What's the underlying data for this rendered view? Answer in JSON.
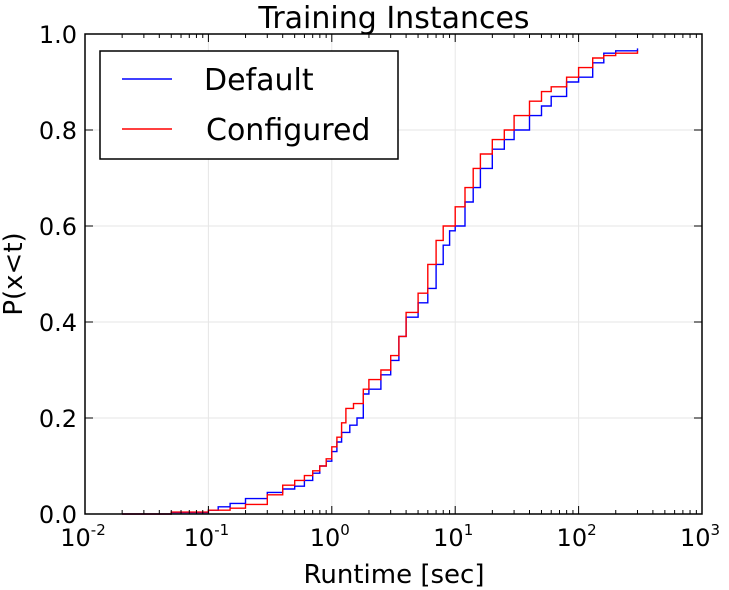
{
  "chart_data": {
    "type": "line",
    "title": "Training Instances",
    "xlabel": "Runtime [sec]",
    "ylabel": "P(x<t)",
    "xscale": "log",
    "xlim": [
      0.01,
      1000
    ],
    "ylim": [
      0.0,
      1.0
    ],
    "grid": true,
    "legend_position": "top-left",
    "x_tick_labels": [
      {
        "base": "10",
        "exp": "-2",
        "value": 0.01
      },
      {
        "base": "10",
        "exp": "-1",
        "value": 0.1
      },
      {
        "base": "10",
        "exp": "0",
        "value": 1
      },
      {
        "base": "10",
        "exp": "1",
        "value": 10
      },
      {
        "base": "10",
        "exp": "2",
        "value": 100
      },
      {
        "base": "10",
        "exp": "3",
        "value": 1000
      }
    ],
    "y_tick_labels": [
      "0.0",
      "0.2",
      "0.4",
      "0.6",
      "0.8",
      "1.0"
    ],
    "y_tick_values": [
      0.0,
      0.2,
      0.4,
      0.6,
      0.8,
      1.0
    ],
    "series": [
      {
        "name": "Default",
        "color": "#0000ff",
        "points": [
          [
            0.02,
            0.0
          ],
          [
            0.05,
            0.003
          ],
          [
            0.1,
            0.008
          ],
          [
            0.12,
            0.015
          ],
          [
            0.15,
            0.022
          ],
          [
            0.2,
            0.032
          ],
          [
            0.3,
            0.045
          ],
          [
            0.4,
            0.052
          ],
          [
            0.5,
            0.058
          ],
          [
            0.6,
            0.07
          ],
          [
            0.7,
            0.085
          ],
          [
            0.8,
            0.1
          ],
          [
            0.9,
            0.11
          ],
          [
            1.0,
            0.13
          ],
          [
            1.1,
            0.15
          ],
          [
            1.2,
            0.17
          ],
          [
            1.4,
            0.185
          ],
          [
            1.6,
            0.2
          ],
          [
            1.8,
            0.25
          ],
          [
            2.0,
            0.26
          ],
          [
            2.5,
            0.29
          ],
          [
            3.0,
            0.32
          ],
          [
            3.5,
            0.37
          ],
          [
            4.0,
            0.41
          ],
          [
            5.0,
            0.44
          ],
          [
            6.0,
            0.47
          ],
          [
            7.0,
            0.52
          ],
          [
            8.0,
            0.56
          ],
          [
            9.0,
            0.59
          ],
          [
            10.0,
            0.6
          ],
          [
            12.0,
            0.65
          ],
          [
            14.0,
            0.68
          ],
          [
            16.0,
            0.72
          ],
          [
            20.0,
            0.76
          ],
          [
            25.0,
            0.78
          ],
          [
            30.0,
            0.8
          ],
          [
            40.0,
            0.83
          ],
          [
            50.0,
            0.85
          ],
          [
            60.0,
            0.87
          ],
          [
            80.0,
            0.9
          ],
          [
            100.0,
            0.91
          ],
          [
            130.0,
            0.94
          ],
          [
            160.0,
            0.96
          ],
          [
            200.0,
            0.965
          ],
          [
            300.0,
            0.97
          ]
        ]
      },
      {
        "name": "Configured",
        "color": "#ff0000",
        "points": [
          [
            0.02,
            0.0
          ],
          [
            0.05,
            0.004
          ],
          [
            0.1,
            0.008
          ],
          [
            0.15,
            0.012
          ],
          [
            0.2,
            0.02
          ],
          [
            0.3,
            0.04
          ],
          [
            0.4,
            0.06
          ],
          [
            0.5,
            0.07
          ],
          [
            0.6,
            0.08
          ],
          [
            0.7,
            0.09
          ],
          [
            0.8,
            0.1
          ],
          [
            0.9,
            0.115
          ],
          [
            1.0,
            0.14
          ],
          [
            1.1,
            0.16
          ],
          [
            1.2,
            0.19
          ],
          [
            1.3,
            0.22
          ],
          [
            1.5,
            0.23
          ],
          [
            1.8,
            0.26
          ],
          [
            2.0,
            0.28
          ],
          [
            2.5,
            0.3
          ],
          [
            3.0,
            0.33
          ],
          [
            3.5,
            0.37
          ],
          [
            4.0,
            0.42
          ],
          [
            5.0,
            0.46
          ],
          [
            6.0,
            0.52
          ],
          [
            7.0,
            0.57
          ],
          [
            8.0,
            0.6
          ],
          [
            10.0,
            0.64
          ],
          [
            12.0,
            0.68
          ],
          [
            14.0,
            0.72
          ],
          [
            16.0,
            0.75
          ],
          [
            20.0,
            0.78
          ],
          [
            25.0,
            0.8
          ],
          [
            30.0,
            0.83
          ],
          [
            40.0,
            0.86
          ],
          [
            50.0,
            0.88
          ],
          [
            60.0,
            0.89
          ],
          [
            80.0,
            0.91
          ],
          [
            100.0,
            0.93
          ],
          [
            130.0,
            0.95
          ],
          [
            160.0,
            0.955
          ],
          [
            200.0,
            0.96
          ],
          [
            300.0,
            0.965
          ]
        ]
      }
    ]
  }
}
